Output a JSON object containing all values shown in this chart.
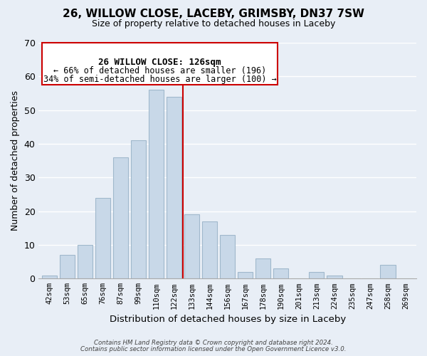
{
  "title": "26, WILLOW CLOSE, LACEBY, GRIMSBY, DN37 7SW",
  "subtitle": "Size of property relative to detached houses in Laceby",
  "xlabel": "Distribution of detached houses by size in Laceby",
  "ylabel": "Number of detached properties",
  "bar_labels": [
    "42sqm",
    "53sqm",
    "65sqm",
    "76sqm",
    "87sqm",
    "99sqm",
    "110sqm",
    "122sqm",
    "133sqm",
    "144sqm",
    "156sqm",
    "167sqm",
    "178sqm",
    "190sqm",
    "201sqm",
    "213sqm",
    "224sqm",
    "235sqm",
    "247sqm",
    "258sqm",
    "269sqm"
  ],
  "bar_values": [
    1,
    7,
    10,
    24,
    36,
    41,
    56,
    54,
    19,
    17,
    13,
    2,
    6,
    3,
    0,
    2,
    1,
    0,
    0,
    4,
    0
  ],
  "bar_color": "#c8d8e8",
  "bar_edge_color": "#a0b8cc",
  "reference_line_x": 7.5,
  "reference_line_color": "#cc0000",
  "ylim": [
    0,
    70
  ],
  "yticks": [
    0,
    10,
    20,
    30,
    40,
    50,
    60,
    70
  ],
  "annotation_title": "26 WILLOW CLOSE: 126sqm",
  "annotation_line1": "← 66% of detached houses are smaller (196)",
  "annotation_line2": "34% of semi-detached houses are larger (100) →",
  "annotation_box_color": "#ffffff",
  "annotation_box_edge": "#cc0000",
  "footer_line1": "Contains HM Land Registry data © Crown copyright and database right 2024.",
  "footer_line2": "Contains public sector information licensed under the Open Government Licence v3.0.",
  "background_color": "#e8eef6"
}
